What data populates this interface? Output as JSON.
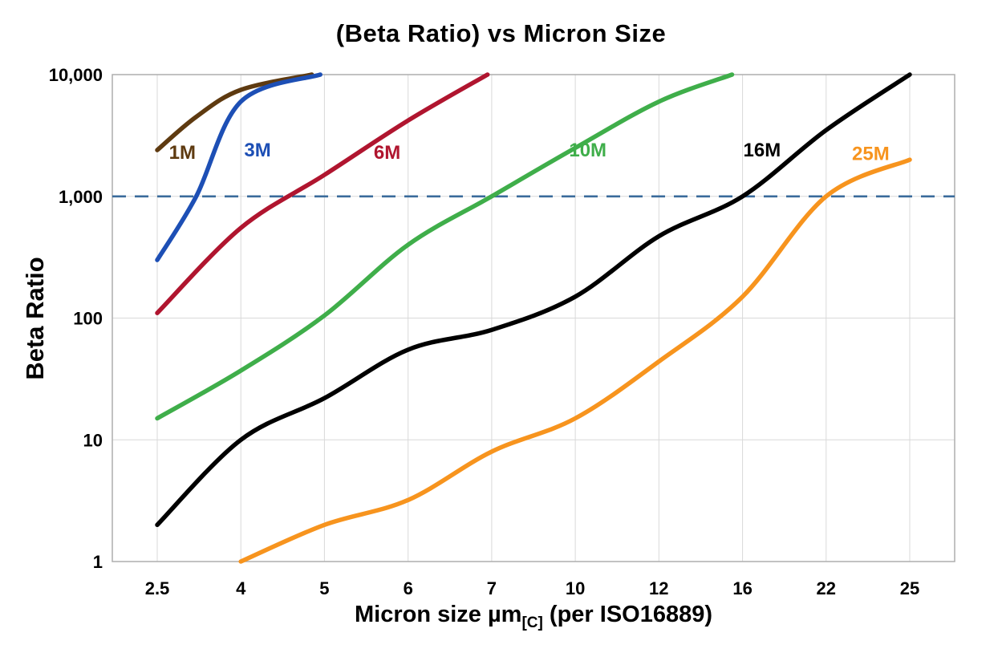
{
  "title": "(Beta Ratio) vs Micron Size",
  "axes": {
    "y_label": "Beta Ratio",
    "x_label_prefix": "Micron size µm",
    "x_label_sub": "[C]",
    "x_label_suffix": " (per ISO16889)"
  },
  "chart_data": {
    "type": "line",
    "title": "(Beta Ratio) vs Micron Size",
    "xlabel": "Micron size µm[C] (per ISO16889)",
    "ylabel": "Beta Ratio",
    "x_scale": "ordinal",
    "x_ticks": [
      2.5,
      4,
      5,
      6,
      7,
      10,
      12,
      16,
      22,
      25
    ],
    "x_tick_labels": [
      "2.5",
      "4",
      "5",
      "6",
      "7",
      "10",
      "12",
      "16",
      "22",
      "25"
    ],
    "y_scale": "log",
    "ylim": [
      1,
      10000
    ],
    "y_ticks": [
      1,
      10,
      100,
      1000,
      10000
    ],
    "y_tick_labels": [
      "1",
      "10",
      "100",
      "1,000",
      "10,000"
    ],
    "grid": true,
    "grid_color": "#d9d9d9",
    "frame_color": "#aeaeae",
    "threshold_line": {
      "value": 1000,
      "style": "dashed",
      "color": "#3a6b9b"
    },
    "series": [
      {
        "name": "1M",
        "color": "#5e3a10",
        "points": [
          [
            2.5,
            2400
          ],
          [
            3.2,
            4500
          ],
          [
            4,
            7500
          ],
          [
            4.85,
            10000
          ]
        ],
        "label_at": [
          2.95,
          2300
        ]
      },
      {
        "name": "3M",
        "color": "#1d4fb5",
        "points": [
          [
            2.5,
            300
          ],
          [
            3.2,
            1000
          ],
          [
            4,
            6000
          ],
          [
            4.95,
            10000
          ]
        ],
        "label_at": [
          4.2,
          2400
        ]
      },
      {
        "name": "6M",
        "color": "#b0152f",
        "points": [
          [
            2.5,
            110
          ],
          [
            4,
            550
          ],
          [
            5,
            1500
          ],
          [
            6,
            4200
          ],
          [
            6.95,
            10000
          ]
        ],
        "label_at": [
          5.75,
          2300
        ]
      },
      {
        "name": "10M",
        "color": "#3fae4a",
        "points": [
          [
            2.5,
            15
          ],
          [
            4,
            37
          ],
          [
            5,
            105
          ],
          [
            6,
            400
          ],
          [
            7,
            1000
          ],
          [
            10,
            2500
          ],
          [
            12,
            6000
          ],
          [
            15.5,
            10000
          ]
        ],
        "label_at": [
          10.3,
          2400
        ]
      },
      {
        "name": "16M",
        "color": "#000000",
        "points": [
          [
            2.5,
            2
          ],
          [
            4,
            10
          ],
          [
            5,
            22
          ],
          [
            6,
            55
          ],
          [
            7,
            80
          ],
          [
            10,
            150
          ],
          [
            12,
            470
          ],
          [
            16,
            1000
          ],
          [
            22,
            3500
          ],
          [
            25,
            10000
          ]
        ],
        "label_at": [
          17.4,
          2400
        ]
      },
      {
        "name": "25M",
        "color": "#f7941e",
        "points": [
          [
            4,
            1
          ],
          [
            5,
            2
          ],
          [
            6,
            3.2
          ],
          [
            7,
            8
          ],
          [
            10,
            15
          ],
          [
            12,
            44
          ],
          [
            16,
            150
          ],
          [
            22,
            1000
          ],
          [
            25,
            2000
          ]
        ],
        "label_at": [
          23.6,
          2250
        ]
      }
    ]
  }
}
